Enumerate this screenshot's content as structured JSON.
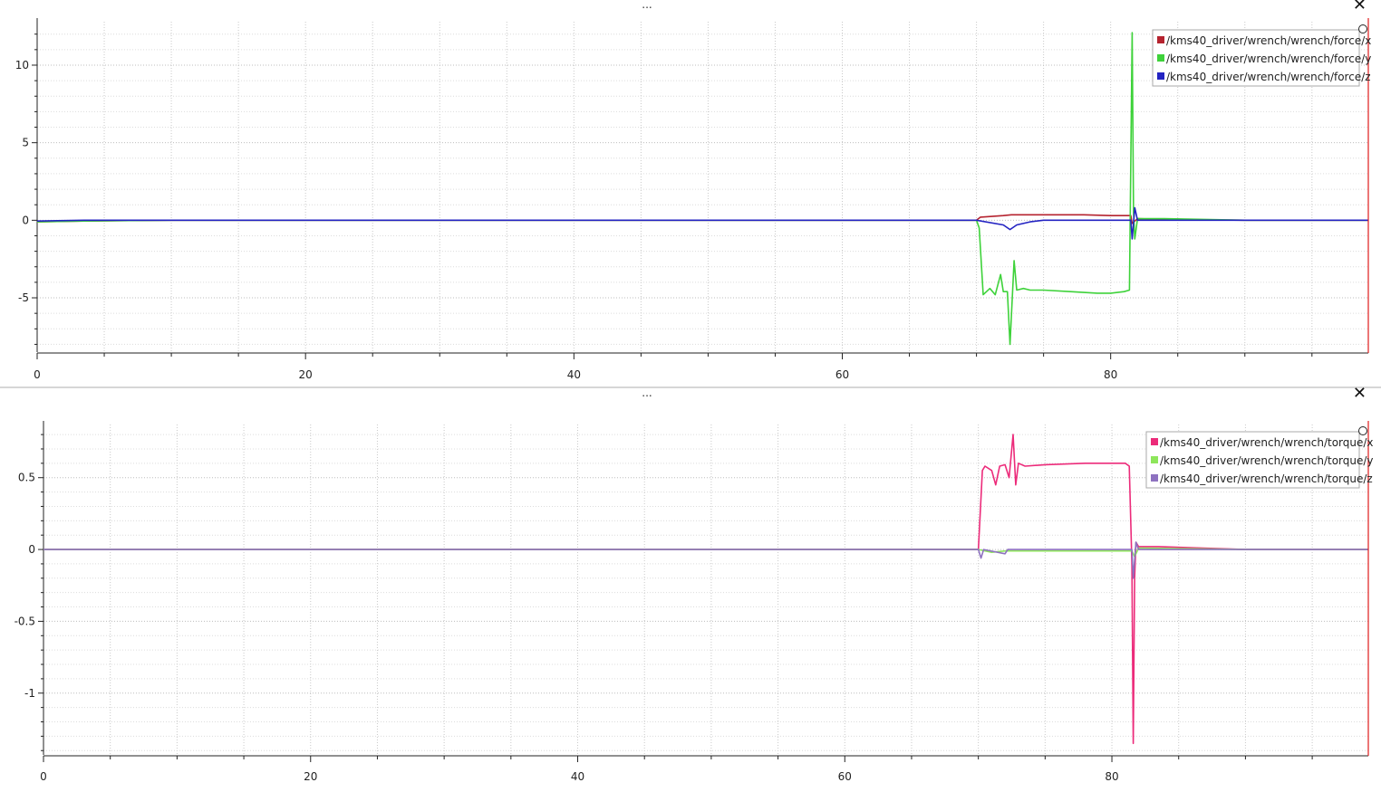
{
  "plots": [
    {
      "menu_label": "...",
      "close_label": "✕",
      "legend": [
        {
          "label": "/kms40_driver/wrench/wrench/force/x",
          "color": "#b5232f"
        },
        {
          "label": "/kms40_driver/wrench/wrench/force/y",
          "color": "#3ed23a"
        },
        {
          "label": "/kms40_driver/wrench/wrench/force/z",
          "color": "#2323c2"
        }
      ]
    },
    {
      "menu_label": "...",
      "close_label": "✕",
      "legend": [
        {
          "label": "/kms40_driver/wrench/wrench/torque/x",
          "color": "#ec2b7a"
        },
        {
          "label": "/kms40_driver/wrench/wrench/torque/y",
          "color": "#8ee65b"
        },
        {
          "label": "/kms40_driver/wrench/wrench/torque/z",
          "color": "#8e72c0"
        }
      ]
    }
  ],
  "chart_data": [
    {
      "type": "line",
      "title": "",
      "xlabel": "",
      "ylabel": "",
      "xlim": [
        0,
        99.2
      ],
      "ylim": [
        -8.5,
        12.8
      ],
      "x_ticks": [
        0,
        20,
        40,
        60,
        80
      ],
      "y_ticks": [
        10,
        5,
        0,
        -5
      ],
      "grid": true,
      "legend_position": "top-right",
      "series": [
        {
          "name": "/kms40_driver/wrench/wrench/force/x",
          "color": "#b5232f",
          "x": [
            0,
            3.5,
            10,
            30,
            50,
            70,
            70.3,
            72,
            72.6,
            73,
            75,
            78,
            80,
            81.5,
            81.6,
            82,
            84,
            90,
            99.2
          ],
          "y": [
            -0.1,
            -0.05,
            0,
            0,
            0,
            0,
            0.2,
            0.3,
            0.35,
            0.35,
            0.35,
            0.35,
            0.3,
            0.3,
            -0.2,
            0.1,
            0.05,
            0,
            0
          ]
        },
        {
          "name": "/kms40_driver/wrench/wrench/force/y",
          "color": "#3ed23a",
          "x": [
            0,
            3.5,
            10,
            30,
            50,
            70,
            70.2,
            70.5,
            71,
            71.4,
            71.8,
            72,
            72.3,
            72.5,
            72.8,
            73,
            73.5,
            74,
            75,
            77,
            79,
            80,
            81,
            81.4,
            81.6,
            81.7,
            81.8,
            82,
            84,
            90,
            99.2
          ],
          "y": [
            -0.1,
            -0.05,
            0,
            0,
            0,
            0,
            -0.5,
            -4.8,
            -4.4,
            -4.8,
            -3.5,
            -4.6,
            -4.6,
            -8,
            -2.6,
            -4.5,
            -4.4,
            -4.5,
            -4.5,
            -4.6,
            -4.7,
            -4.7,
            -4.6,
            -4.5,
            12.1,
            0.5,
            -1.2,
            0.1,
            0.1,
            0,
            0
          ]
        },
        {
          "name": "/kms40_driver/wrench/wrench/force/z",
          "color": "#2323c2",
          "x": [
            0,
            3.5,
            10,
            30,
            50,
            70,
            72,
            72.5,
            73,
            74,
            75,
            80,
            81.5,
            81.6,
            81.8,
            82,
            84,
            90,
            99.2
          ],
          "y": [
            -0.05,
            0,
            0,
            0,
            0,
            0,
            -0.3,
            -0.6,
            -0.3,
            -0.1,
            0,
            0,
            0,
            -1.2,
            0.8,
            0,
            0,
            0,
            0
          ]
        }
      ]
    },
    {
      "type": "line",
      "title": "",
      "xlabel": "",
      "ylabel": "",
      "xlim": [
        0,
        99.2
      ],
      "ylim": [
        -1.43,
        0.87
      ],
      "x_ticks": [
        0,
        20,
        40,
        60,
        80
      ],
      "y_ticks": [
        0.5,
        0,
        -0.5,
        -1
      ],
      "y_tick_labels": [
        "0.5",
        "0",
        "-0.5",
        "-1"
      ],
      "grid": true,
      "legend_position": "top-right",
      "series": [
        {
          "name": "/kms40_driver/wrench/wrench/torque/x",
          "color": "#ec2b7a",
          "x": [
            0,
            3.5,
            10,
            30,
            50,
            70,
            70.3,
            70.5,
            71,
            71.3,
            71.6,
            72,
            72.3,
            72.6,
            72.8,
            73,
            73.5,
            75,
            78,
            80,
            81,
            81.3,
            81.5,
            81.6,
            81.7,
            81.8,
            82,
            83.5,
            90,
            99.2
          ],
          "y": [
            0,
            0,
            0,
            0,
            0,
            0,
            0.55,
            0.58,
            0.55,
            0.45,
            0.58,
            0.59,
            0.5,
            0.8,
            0.45,
            0.6,
            0.58,
            0.59,
            0.6,
            0.6,
            0.6,
            0.58,
            -0.1,
            -1.35,
            -0.2,
            0.05,
            0.02,
            0.02,
            0,
            0
          ]
        },
        {
          "name": "/kms40_driver/wrench/wrench/torque/y",
          "color": "#8ee65b",
          "x": [
            0,
            10,
            30,
            50,
            70,
            71,
            72,
            73,
            75,
            78,
            80,
            81.5,
            81.7,
            82,
            90,
            99.2
          ],
          "y": [
            0,
            0,
            0,
            0,
            0,
            -0.02,
            -0.01,
            -0.01,
            -0.01,
            -0.01,
            -0.01,
            -0.01,
            -0.05,
            0.01,
            0,
            0
          ]
        },
        {
          "name": "/kms40_driver/wrench/wrench/torque/z",
          "color": "#8e72c0",
          "x": [
            0,
            10,
            30,
            50,
            70,
            70.2,
            70.4,
            72,
            72.2,
            80,
            81.5,
            81.6,
            81.8,
            82,
            90,
            99.2
          ],
          "y": [
            0,
            0,
            0,
            0,
            0,
            -0.06,
            0,
            -0.03,
            0,
            0,
            0,
            -0.2,
            0.05,
            0,
            0,
            0
          ]
        }
      ]
    }
  ]
}
